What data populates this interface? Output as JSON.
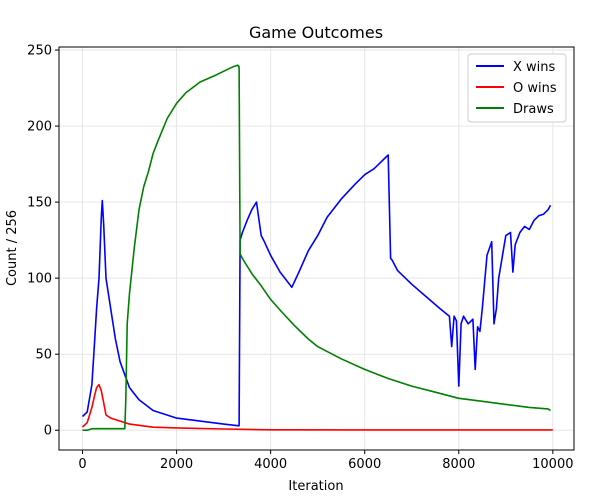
{
  "chart_data": {
    "type": "line",
    "title": "Game Outcomes",
    "xlabel": "Iteration",
    "ylabel": "Count / 256",
    "xlim": [
      -500,
      10450
    ],
    "ylim": [
      -13,
      252
    ],
    "xticks": [
      0,
      2000,
      4000,
      6000,
      8000,
      10000
    ],
    "yticks": [
      0,
      50,
      100,
      150,
      200,
      250
    ],
    "grid": true,
    "legend_position": "top-right",
    "series": [
      {
        "name": "X wins",
        "color": "#0000ff",
        "x": [
          0,
          100,
          200,
          250,
          300,
          350,
          400,
          420,
          450,
          500,
          600,
          700,
          800,
          1000,
          1200,
          1500,
          2000,
          2500,
          3000,
          3300,
          3330,
          3350,
          3400,
          3500,
          3600,
          3700,
          3800,
          3850,
          4000,
          4200,
          4400,
          4450,
          4600,
          4800,
          5000,
          5200,
          5500,
          5800,
          6000,
          6200,
          6400,
          6500,
          6550,
          6580,
          6700,
          7000,
          7300,
          7600,
          7800,
          7850,
          7900,
          7950,
          8000,
          8050,
          8100,
          8200,
          8300,
          8350,
          8400,
          8450,
          8500,
          8600,
          8700,
          8750,
          8800,
          8850,
          9000,
          9100,
          9150,
          9200,
          9300,
          9400,
          9500,
          9600,
          9700,
          9800,
          9900,
          9950
        ],
        "y": [
          9,
          12,
          30,
          55,
          80,
          100,
          140,
          151,
          135,
          100,
          80,
          60,
          45,
          28,
          20,
          13,
          8,
          6,
          4,
          3,
          3,
          125,
          130,
          138,
          145,
          150,
          128,
          125,
          115,
          104,
          96,
          94,
          104,
          118,
          128,
          140,
          152,
          162,
          168,
          172,
          178,
          181,
          113,
          112,
          105,
          96,
          88,
          80,
          75,
          55,
          75,
          72,
          29,
          70,
          75,
          70,
          73,
          40,
          68,
          65,
          80,
          115,
          124,
          70,
          80,
          100,
          128,
          130,
          104,
          122,
          130,
          134,
          132,
          138,
          141,
          142,
          145,
          148
        ]
      },
      {
        "name": "O wins",
        "color": "#ff0000",
        "x": [
          0,
          100,
          200,
          250,
          300,
          350,
          400,
          450,
          500,
          600,
          700,
          800,
          1000,
          1500,
          2000,
          3000,
          4000,
          6000,
          8000,
          10000
        ],
        "y": [
          2,
          5,
          15,
          22,
          28,
          30,
          26,
          18,
          10,
          8,
          7,
          6,
          4,
          2,
          1.5,
          0.8,
          0.3,
          0.2,
          0.2,
          0.2
        ]
      },
      {
        "name": "Draws",
        "color": "#008000",
        "x": [
          0,
          100,
          200,
          400,
          600,
          800,
          900,
          920,
          950,
          1000,
          1100,
          1200,
          1300,
          1400,
          1500,
          1600,
          1800,
          2000,
          2200,
          2500,
          2800,
          3000,
          3200,
          3300,
          3330,
          3350,
          3400,
          3500,
          3600,
          3800,
          4000,
          4200,
          4500,
          4800,
          5000,
          5500,
          6000,
          6500,
          7000,
          7500,
          8000,
          8500,
          9000,
          9500,
          9900,
          9950
        ],
        "y": [
          0,
          0,
          1,
          1,
          1,
          1,
          1,
          20,
          70,
          90,
          120,
          145,
          160,
          170,
          182,
          190,
          205,
          215,
          222,
          229,
          233,
          236,
          239,
          240,
          239,
          116,
          113,
          108,
          103,
          95,
          86,
          79,
          69,
          60,
          55,
          47,
          40,
          34,
          29,
          25,
          21,
          19,
          17,
          15,
          14,
          13
        ]
      }
    ]
  }
}
